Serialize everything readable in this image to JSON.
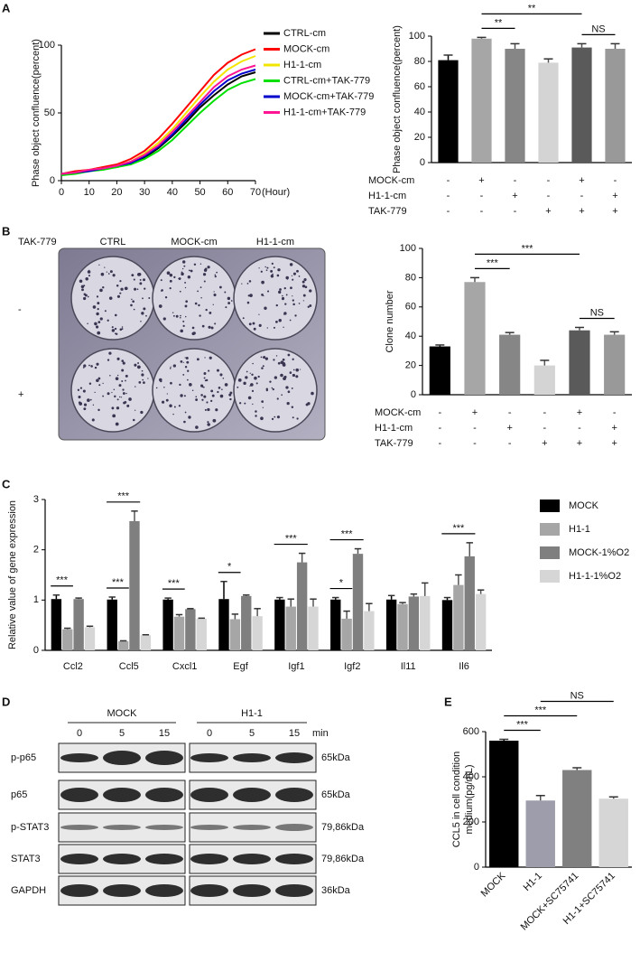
{
  "panel_labels": [
    "A",
    "B",
    "C",
    "D",
    "E"
  ],
  "colony_image": {
    "treatment_label": "TAK-779",
    "columns": [
      "CTRL",
      "MOCK-cm",
      "H1-1-cm"
    ],
    "rows": [
      "-",
      "+"
    ]
  },
  "western_blot": {
    "groups": [
      "MOCK",
      "H1-1"
    ],
    "time_points": [
      "0",
      "5",
      "15"
    ],
    "time_unit": "min",
    "rows": [
      {
        "protein": "p-p65",
        "size": "65kDa"
      },
      {
        "protein": "p65",
        "size": "65kDa"
      },
      {
        "protein": "p-STAT3",
        "size": "79,86kDa"
      },
      {
        "protein": "STAT3",
        "size": "79,86kDa"
      },
      {
        "protein": "GAPDH",
        "size": "36kDa"
      }
    ]
  },
  "chart_data": [
    {
      "type": "line",
      "y_label": "Phase object confluence(percent)",
      "x_label": "(Hour)",
      "x": [
        0,
        5,
        10,
        15,
        20,
        25,
        30,
        35,
        40,
        45,
        50,
        55,
        60,
        65,
        70
      ],
      "xlim": [
        0,
        70
      ],
      "xticks": [
        0,
        10,
        20,
        30,
        40,
        50,
        60,
        70
      ],
      "ylim": [
        0,
        100
      ],
      "yticks": [
        0,
        50,
        100
      ],
      "legend": "right",
      "series": [
        {
          "name": "CTRL-cm",
          "color": "#000000",
          "values": [
            5,
            6,
            7,
            9,
            10,
            13,
            17,
            24,
            33,
            43,
            54,
            63,
            71,
            77,
            80
          ]
        },
        {
          "name": "MOCK-cm",
          "color": "#ff0000",
          "values": [
            5,
            7,
            8,
            10,
            12,
            16,
            22,
            31,
            42,
            54,
            66,
            78,
            87,
            93,
            97
          ]
        },
        {
          "name": "H1-1-cm",
          "color": "#f2e600",
          "values": [
            5,
            6,
            8,
            9,
            11,
            14,
            20,
            28,
            38,
            50,
            62,
            73,
            82,
            88,
            92
          ]
        },
        {
          "name": "CTRL-cm+TAK-779",
          "color": "#00e000",
          "values": [
            4,
            5,
            7,
            8,
            10,
            12,
            16,
            22,
            30,
            40,
            50,
            59,
            67,
            72,
            75
          ]
        },
        {
          "name": "MOCK-cm+TAK-779",
          "color": "#0000cc",
          "values": [
            5,
            6,
            7,
            9,
            11,
            13,
            18,
            25,
            34,
            45,
            56,
            66,
            74,
            79,
            82
          ]
        },
        {
          "name": "H1-1-cm+TAK-779",
          "color": "#ff1493",
          "values": [
            5,
            6,
            8,
            9,
            11,
            14,
            19,
            26,
            36,
            47,
            58,
            69,
            77,
            82,
            85
          ]
        }
      ]
    },
    {
      "type": "bar",
      "y_label": "Phase object confluence(percent)",
      "categories": [
        null,
        null,
        null,
        null,
        null,
        null
      ],
      "values": [
        81,
        98,
        90,
        79,
        91,
        90
      ],
      "errors": [
        4,
        1,
        4,
        3,
        3,
        4
      ],
      "colors": [
        "#000000",
        "#a6a6a6",
        "#868686",
        "#d4d4d4",
        "#5a5a5a",
        "#999999"
      ],
      "ylim": [
        0,
        100
      ],
      "yticks": [
        0,
        20,
        40,
        60,
        80,
        100
      ],
      "conditions": [
        {
          "name": "MOCK-cm",
          "values": [
            "-",
            "+",
            "-",
            "-",
            "+",
            "-"
          ]
        },
        {
          "name": "H1-1-cm",
          "values": [
            "-",
            "-",
            "+",
            "-",
            "-",
            "+"
          ]
        },
        {
          "name": "TAK-779",
          "values": [
            "-",
            "-",
            "-",
            "+",
            "+",
            "+"
          ]
        }
      ],
      "annotations": [
        {
          "text": "**",
          "from": 1,
          "to": 2
        },
        {
          "text": "**",
          "from": 1,
          "to": 4
        },
        {
          "text": "NS",
          "from": 4,
          "to": 5
        }
      ]
    },
    {
      "type": "bar",
      "y_label": "Clone number",
      "categories": [
        null,
        null,
        null,
        null,
        null,
        null
      ],
      "values": [
        33,
        77,
        41,
        20,
        44,
        41
      ],
      "errors": [
        1,
        3,
        1.5,
        3.5,
        2,
        2
      ],
      "colors": [
        "#000000",
        "#a6a6a6",
        "#868686",
        "#d4d4d4",
        "#5a5a5a",
        "#999999"
      ],
      "ylim": [
        0,
        100
      ],
      "yticks": [
        0,
        20,
        40,
        60,
        80,
        100
      ],
      "conditions": [
        {
          "name": "MOCK-cm",
          "values": [
            "-",
            "+",
            "-",
            "-",
            "+",
            "-"
          ]
        },
        {
          "name": "H1-1-cm",
          "values": [
            "-",
            "-",
            "+",
            "-",
            "-",
            "+"
          ]
        },
        {
          "name": "TAK-779",
          "values": [
            "-",
            "-",
            "-",
            "+",
            "+",
            "+"
          ]
        }
      ],
      "annotations": [
        {
          "text": "***",
          "from": 1,
          "to": 2
        },
        {
          "text": "***",
          "from": 1,
          "to": 4
        },
        {
          "text": "NS",
          "from": 4,
          "to": 5
        }
      ]
    },
    {
      "type": "bar",
      "y_label": "Relative value of gene expression",
      "categories": [
        "Ccl2",
        "Ccl5",
        "Cxcl1",
        "Egf",
        "Igf1",
        "Igf2",
        "Il11",
        "Il6"
      ],
      "category_colors": [
        "#111111",
        "#e0201c",
        "#111111",
        "#111111",
        "#111111",
        "#111111",
        "#111111",
        "#111111"
      ],
      "ylim": [
        0,
        3
      ],
      "yticks": [
        0,
        1,
        2,
        3
      ],
      "legend": "right",
      "series": [
        {
          "name": "MOCK",
          "color": "#000000",
          "values": [
            1.02,
            1.01,
            1.01,
            1.02,
            1.01,
            1.01,
            1.01,
            1.0
          ],
          "errors": [
            0.08,
            0.05,
            0.03,
            0.35,
            0.04,
            0.04,
            0.08,
            0.05
          ]
        },
        {
          "name": "H1-1",
          "color": "#a6a6a6",
          "values": [
            0.42,
            0.18,
            0.67,
            0.62,
            0.87,
            0.63,
            0.92,
            1.3
          ],
          "errors": [
            0.02,
            0.01,
            0.04,
            0.1,
            0.15,
            0.15,
            0.03,
            0.2
          ]
        },
        {
          "name": "MOCK-1%O2",
          "color": "#7f7f7f",
          "values": [
            1.02,
            2.57,
            0.82,
            1.08,
            1.75,
            1.92,
            1.07,
            1.87
          ],
          "errors": [
            0.02,
            0.2,
            0.01,
            0.02,
            0.18,
            0.1,
            0.05,
            0.27
          ]
        },
        {
          "name": "H1-1-1%O2",
          "color": "#d6d6d6",
          "values": [
            0.46,
            0.3,
            0.63,
            0.68,
            0.87,
            0.78,
            1.08,
            1.12
          ],
          "errors": [
            0.02,
            0.01,
            0.01,
            0.15,
            0.15,
            0.15,
            0.26,
            0.08
          ]
        }
      ],
      "annotations": [
        {
          "text": "***",
          "category": 0,
          "from": 0,
          "to": 1
        },
        {
          "text": "***",
          "category": 1,
          "from": 0,
          "to": 1
        },
        {
          "text": "***",
          "category": 1,
          "from": 0,
          "to": 2
        },
        {
          "text": "***",
          "category": 2,
          "from": 0,
          "to": 1
        },
        {
          "text": "*",
          "category": 3,
          "from": 0,
          "to": 1
        },
        {
          "text": "***",
          "category": 4,
          "from": 0,
          "to": 2
        },
        {
          "text": "*",
          "category": 5,
          "from": 0,
          "to": 1
        },
        {
          "text": "***",
          "category": 5,
          "from": 0,
          "to": 2
        },
        {
          "text": "***",
          "category": 7,
          "from": 0,
          "to": 2
        }
      ]
    },
    {
      "type": "bar",
      "y_label": [
        "CCL5 in cell condition",
        "medium(pg/mL)"
      ],
      "categories": [
        "MOCK",
        "H1-1",
        "MOCK+SC75741",
        "H1-1+SC75741"
      ],
      "values": [
        560,
        295,
        430,
        303
      ],
      "errors": [
        6,
        22,
        10,
        8
      ],
      "colors": [
        "#000000",
        "#9d9dab",
        "#808080",
        "#d6d6d6"
      ],
      "ylim": [
        0,
        600
      ],
      "yticks": [
        0,
        200,
        400,
        600
      ],
      "annotations": [
        {
          "text": "***",
          "from": 0,
          "to": 1
        },
        {
          "text": "***",
          "from": 0,
          "to": 2
        },
        {
          "text": "NS",
          "from": 1,
          "to": 3
        }
      ]
    }
  ]
}
